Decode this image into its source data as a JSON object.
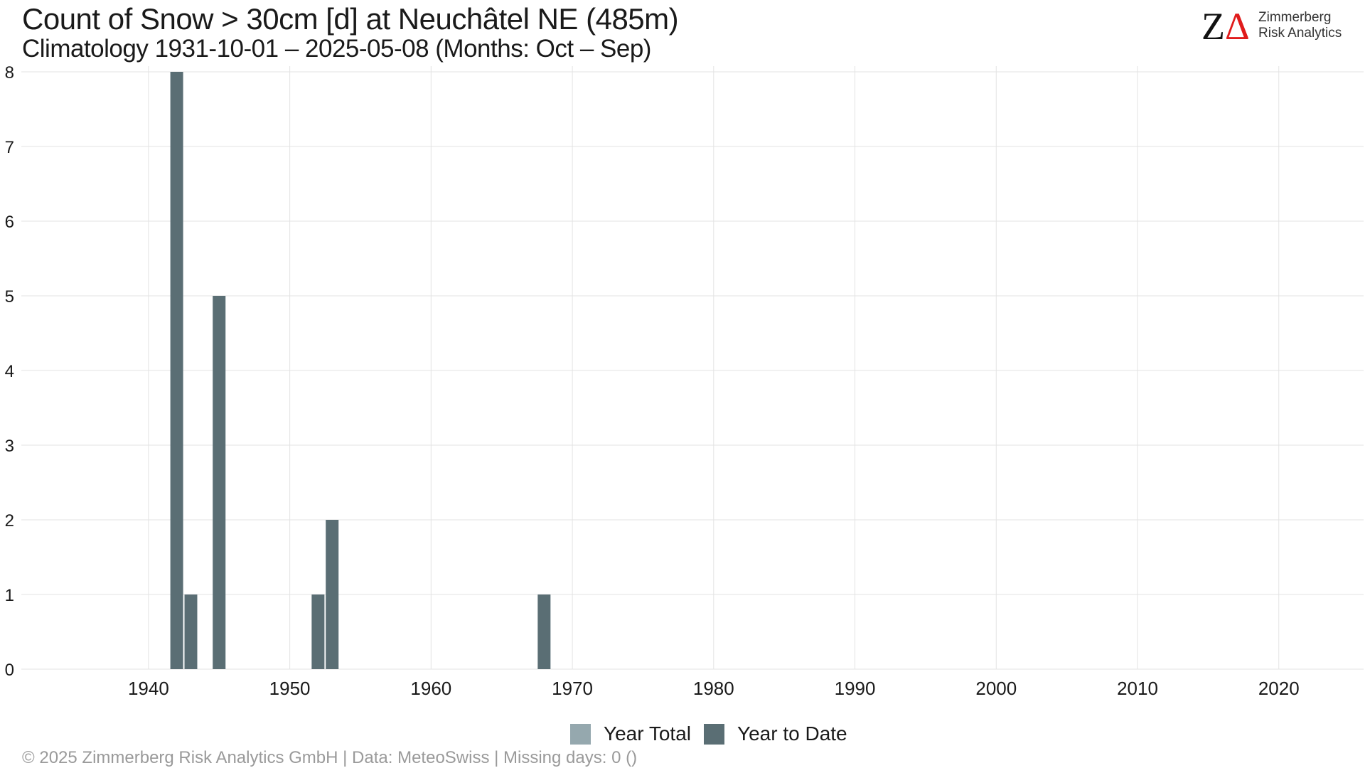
{
  "header": {
    "title": "Count of Snow > 30cm [d] at Neuchâtel  NE (485m)",
    "subtitle": "Climatology 1931-10-01 – 2025-05-08 (Months: Oct – Sep)"
  },
  "logo": {
    "mark_z": "Z",
    "mark_delta": "Δ",
    "line1": "Zimmerberg",
    "line2": "Risk Analytics"
  },
  "colors": {
    "year_total": "#95a8ae",
    "year_to_date": "#5a6e74",
    "grid": "#e3e3e3",
    "logo_accent": "#e01b1b"
  },
  "chart_data": {
    "type": "bar",
    "title": "Count of Snow > 30cm [d] at Neuchâtel  NE (485m)",
    "subtitle": "Climatology 1931-10-01 – 2025-05-08 (Months: Oct – Sep)",
    "xlabel": "",
    "ylabel": "",
    "xlim": [
      1931,
      2026
    ],
    "ylim": [
      0,
      8
    ],
    "x_ticks": [
      1940,
      1950,
      1960,
      1970,
      1980,
      1990,
      2000,
      2010,
      2020
    ],
    "y_ticks": [
      0,
      1,
      2,
      3,
      4,
      5,
      6,
      7,
      8
    ],
    "grid": true,
    "legend_position": "bottom",
    "series": [
      {
        "name": "Year Total",
        "color": "#95a8ae",
        "x": [
          1942,
          1943,
          1945,
          1952,
          1953,
          1968
        ],
        "values": [
          8,
          1,
          5,
          1,
          2,
          1
        ]
      },
      {
        "name": "Year to Date",
        "color": "#5a6e74",
        "x": [
          1942,
          1943,
          1945,
          1952,
          1953,
          1968
        ],
        "values": [
          8,
          1,
          5,
          1,
          2,
          1
        ]
      }
    ]
  },
  "legend": {
    "year_total_label": "Year Total",
    "year_to_date_label": "Year to Date"
  },
  "footer": {
    "caption": "©  2025 Zimmerberg Risk Analytics GmbH | Data: MeteoSwiss | Missing days: 0 ()"
  }
}
